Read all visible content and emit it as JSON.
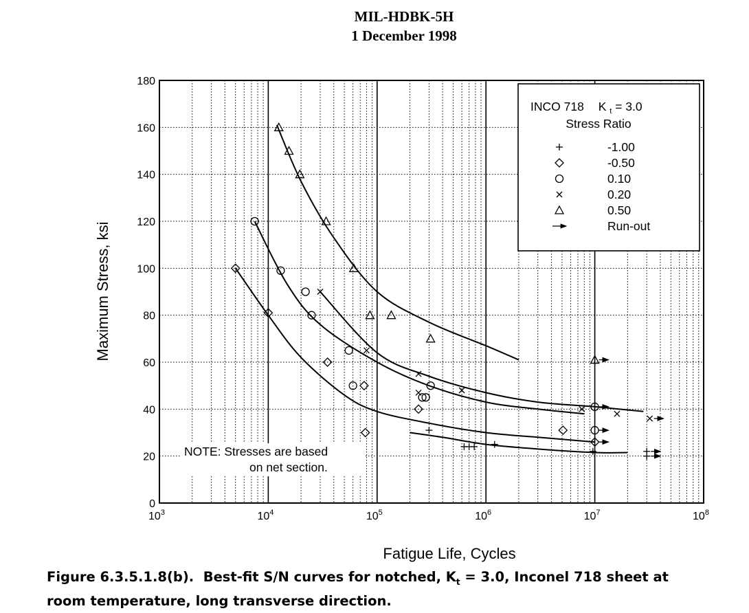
{
  "header": {
    "document": "MIL-HDBK-5H",
    "date": "1 December 1998"
  },
  "caption": {
    "figure_label": "Figure 6.3.5.1.8(b).",
    "line1_before_k": "Best-fit S/N curves for notched, K",
    "k_subscript": "t",
    "line1_after_k": " = 3.0,  Inconel 718 sheet at",
    "line2": "room temperature, long transverse direction."
  },
  "chart_data": {
    "type": "scatter",
    "xlabel": "Fatigue Life, Cycles",
    "ylabel": "Maximum Stress, ksi",
    "xscale": "log",
    "xlim": [
      1000,
      100000000
    ],
    "ylim": [
      0,
      180
    ],
    "xticks": [
      {
        "value": 1000,
        "base": "10",
        "exp": "3"
      },
      {
        "value": 10000,
        "base": "10",
        "exp": "4"
      },
      {
        "value": 100000,
        "base": "10",
        "exp": "5"
      },
      {
        "value": 1000000,
        "base": "10",
        "exp": "6"
      },
      {
        "value": 10000000,
        "base": "10",
        "exp": "7"
      },
      {
        "value": 100000000,
        "base": "10",
        "exp": "8"
      }
    ],
    "yticks": [
      0,
      20,
      40,
      60,
      80,
      100,
      120,
      140,
      160,
      180
    ],
    "grid": true,
    "legend": {
      "placement": "top-right",
      "title_material": "INCO 718",
      "title_k": "K",
      "title_k_sub": "t",
      "title_k_value": " = 3.0",
      "subtitle": "Stress Ratio",
      "entries": [
        {
          "symbol": "plus",
          "label": "-1.00"
        },
        {
          "symbol": "diamond",
          "label": "-0.50"
        },
        {
          "symbol": "circle",
          "label": "0.10"
        },
        {
          "symbol": "x",
          "label": "0.20"
        },
        {
          "symbol": "triangle",
          "label": "0.50"
        },
        {
          "symbol": "arrow",
          "label": "Run-out"
        }
      ]
    },
    "note": {
      "line1": "NOTE: Stresses are based",
      "line2": "on net section."
    },
    "series": [
      {
        "stress_ratio": "-1.00",
        "symbol": "plus",
        "points": [
          {
            "x": 300000,
            "y": 31
          },
          {
            "x": 630000,
            "y": 24
          },
          {
            "x": 700000,
            "y": 24
          },
          {
            "x": 780000,
            "y": 24
          },
          {
            "x": 1200000,
            "y": 25
          },
          {
            "x": 9600000,
            "y": 22,
            "runout": false
          },
          {
            "x": 30000000,
            "y": 22,
            "runout": true
          },
          {
            "x": 30000000,
            "y": 20,
            "runout": true
          }
        ],
        "curve": [
          [
            200000,
            30
          ],
          [
            400000,
            28
          ],
          [
            1000000,
            25
          ],
          [
            3000000,
            23
          ],
          [
            10000000,
            21.5
          ],
          [
            20000000,
            21.5
          ]
        ]
      },
      {
        "stress_ratio": "-0.50",
        "symbol": "diamond",
        "points": [
          {
            "x": 5000,
            "y": 100
          },
          {
            "x": 10000,
            "y": 81
          },
          {
            "x": 35000,
            "y": 60
          },
          {
            "x": 76000,
            "y": 50
          },
          {
            "x": 78000,
            "y": 30
          },
          {
            "x": 240000,
            "y": 40
          },
          {
            "x": 5100000,
            "y": 31
          },
          {
            "x": 10000000,
            "y": 26,
            "runout": true
          }
        ],
        "curve": [
          [
            5000,
            100
          ],
          [
            10000,
            80
          ],
          [
            20000,
            62
          ],
          [
            50000,
            46
          ],
          [
            100000,
            39
          ],
          [
            300000,
            34
          ],
          [
            1000000,
            30
          ],
          [
            3000000,
            28
          ],
          [
            10000000,
            26
          ]
        ]
      },
      {
        "stress_ratio": "0.10",
        "symbol": "circle",
        "points": [
          {
            "x": 7500,
            "y": 120
          },
          {
            "x": 13000,
            "y": 99
          },
          {
            "x": 22000,
            "y": 90
          },
          {
            "x": 25000,
            "y": 80
          },
          {
            "x": 55000,
            "y": 65
          },
          {
            "x": 60000,
            "y": 50
          },
          {
            "x": 260000,
            "y": 45
          },
          {
            "x": 280000,
            "y": 45
          },
          {
            "x": 310000,
            "y": 50
          },
          {
            "x": 10000000,
            "y": 41,
            "runout": true
          },
          {
            "x": 10000000,
            "y": 31,
            "runout": true
          }
        ],
        "curve": [
          [
            7500,
            120
          ],
          [
            15000,
            93
          ],
          [
            30000,
            76
          ],
          [
            100000,
            60
          ],
          [
            300000,
            50
          ],
          [
            1000000,
            43
          ],
          [
            3000000,
            40
          ],
          [
            8000000,
            38
          ]
        ]
      },
      {
        "stress_ratio": "0.20",
        "symbol": "x",
        "points": [
          {
            "x": 30000,
            "y": 90
          },
          {
            "x": 80000,
            "y": 65
          },
          {
            "x": 240000,
            "y": 55
          },
          {
            "x": 240000,
            "y": 47
          },
          {
            "x": 600000,
            "y": 48
          },
          {
            "x": 7600000,
            "y": 40
          },
          {
            "x": 16000000,
            "y": 38
          },
          {
            "x": 32000000,
            "y": 36,
            "runout": true
          }
        ],
        "curve": [
          [
            30000,
            90
          ],
          [
            100000,
            64
          ],
          [
            300000,
            54
          ],
          [
            1000000,
            47
          ],
          [
            3000000,
            43
          ],
          [
            10000000,
            41
          ],
          [
            28000000,
            39
          ]
        ]
      },
      {
        "stress_ratio": "0.50",
        "symbol": "triangle",
        "points": [
          {
            "x": 12500,
            "y": 160
          },
          {
            "x": 15500,
            "y": 150
          },
          {
            "x": 19500,
            "y": 140
          },
          {
            "x": 34000,
            "y": 120
          },
          {
            "x": 61000,
            "y": 100
          },
          {
            "x": 86000,
            "y": 80
          },
          {
            "x": 135000,
            "y": 80
          },
          {
            "x": 310000,
            "y": 70
          },
          {
            "x": 10000000,
            "y": 61,
            "runout": true
          }
        ],
        "curve": [
          [
            12000,
            161
          ],
          [
            20000,
            137
          ],
          [
            40000,
            113
          ],
          [
            100000,
            90
          ],
          [
            300000,
            77
          ],
          [
            1000000,
            67
          ],
          [
            2000000,
            61
          ]
        ]
      }
    ]
  }
}
